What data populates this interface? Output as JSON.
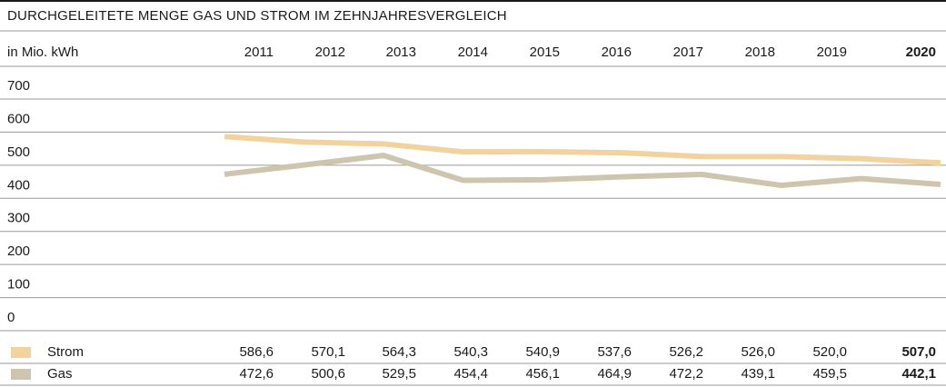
{
  "chart_data": {
    "type": "line",
    "title": "DURCHGELEITETE MENGE GAS UND STROM IM ZEHNJAHRESVERGLEICH",
    "y_label": "in Mio. kWh",
    "categories": [
      "2011",
      "2012",
      "2013",
      "2014",
      "2015",
      "2016",
      "2017",
      "2018",
      "2019",
      "2020"
    ],
    "series": [
      {
        "name": "Strom",
        "color": "#f2d3a0",
        "values": [
          586.6,
          570.1,
          564.3,
          540.3,
          540.9,
          537.6,
          526.2,
          526.0,
          520.0,
          507.0
        ],
        "value_labels": [
          "586,6",
          "570,1",
          "564,3",
          "540,3",
          "540,9",
          "537,6",
          "526,2",
          "526,0",
          "520,0",
          "507,0"
        ]
      },
      {
        "name": "Gas",
        "color": "#cdc5ae",
        "values": [
          472.6,
          500.6,
          529.5,
          454.4,
          456.1,
          464.9,
          472.2,
          439.1,
          459.5,
          442.1
        ],
        "value_labels": [
          "472,6",
          "500,6",
          "529,5",
          "454,4",
          "456,1",
          "464,9",
          "472,2",
          "439,1",
          "459,5",
          "442,1"
        ]
      }
    ],
    "ylim": [
      0,
      700
    ],
    "yticks": [
      0,
      100,
      200,
      300,
      400,
      500,
      600,
      700
    ],
    "grid": true
  }
}
